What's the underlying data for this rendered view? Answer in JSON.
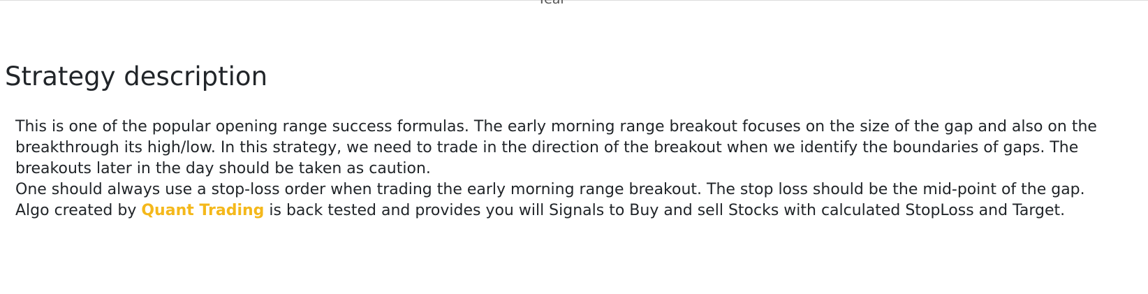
{
  "header": {
    "clipped_label": "Year"
  },
  "section": {
    "title": "Strategy description",
    "paragraph_1": "This is one of the popular opening range success formulas. The early morning range breakout focuses on the size of the gap and also on the breakthrough its high/low. In this strategy, we need to trade in the direction of the breakout when we identify the boundaries of gaps. The breakouts later in the day should be taken as caution.",
    "paragraph_2": "One should always use a stop-loss order when trading the early morning range breakout. The stop loss should be the mid-point of the gap.",
    "paragraph_3_prefix": "Algo created by ",
    "brand_link": "Quant Trading",
    "paragraph_3_suffix": " is back tested and provides you will Signals to Buy and sell Stocks with calculated StopLoss and Target."
  },
  "colors": {
    "brand_accent": "#f4b81b",
    "text": "#212529"
  }
}
